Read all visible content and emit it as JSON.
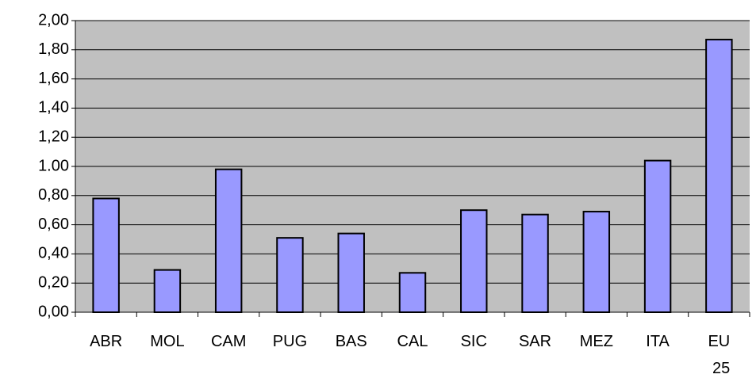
{
  "chart_data": {
    "type": "bar",
    "categories": [
      "ABR",
      "MOL",
      "CAM",
      "PUG",
      "BAS",
      "CAL",
      "SIC",
      "SAR",
      "MEZ",
      "ITA",
      "EU 25"
    ],
    "values": [
      0.78,
      0.29,
      0.98,
      0.51,
      0.54,
      0.27,
      0.7,
      0.67,
      0.69,
      1.04,
      1.87
    ],
    "color": "#9999ff",
    "ylim": [
      0,
      2
    ],
    "yticks": [
      {
        "value": 0,
        "label": "0,00"
      },
      {
        "value": 0.2,
        "label": "0,20"
      },
      {
        "value": 0.4,
        "label": "0,40"
      },
      {
        "value": 0.6,
        "label": "0,60"
      },
      {
        "value": 0.8,
        "label": "0,80"
      },
      {
        "value": 1,
        "label": "1.00"
      },
      {
        "value": 1.2,
        "label": "1,20"
      },
      {
        "value": 1.4,
        "label": "1,40"
      },
      {
        "value": 1.6,
        "label": "1,60"
      },
      {
        "value": 1.8,
        "label": "1,80"
      },
      {
        "value": 2,
        "label": "2,00"
      }
    ],
    "grid": true
  }
}
